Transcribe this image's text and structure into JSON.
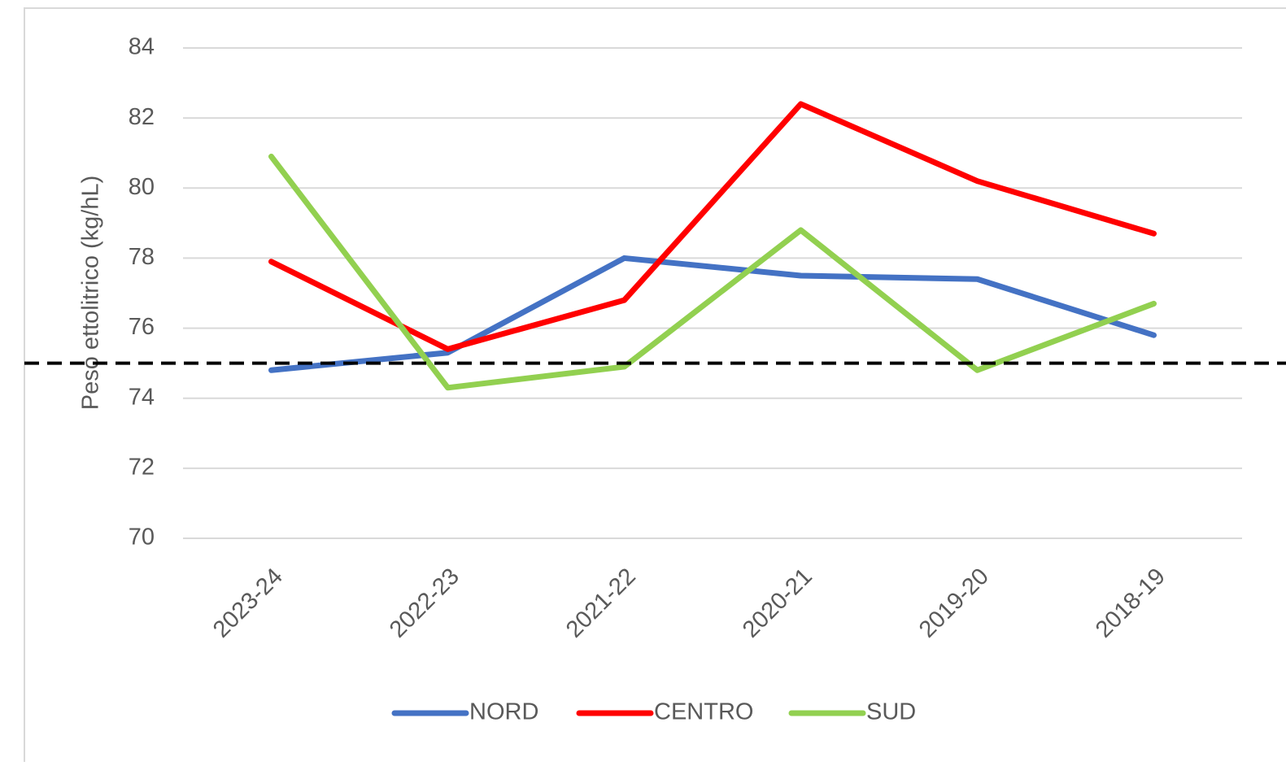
{
  "chart_data": {
    "type": "line",
    "y_label": "Peso ettolitrico (kg/hL)",
    "categories": [
      "2023-24",
      "2022-23",
      "2021-22",
      "2020-21",
      "2019-20",
      "2018-19"
    ],
    "series": [
      {
        "name": "NORD",
        "color": "#4472c4",
        "values": [
          74.8,
          75.3,
          78.0,
          77.5,
          77.4,
          75.8
        ]
      },
      {
        "name": "CENTRO",
        "color": "#ff0000",
        "values": [
          77.9,
          75.4,
          76.8,
          82.4,
          80.2,
          78.7
        ]
      },
      {
        "name": "SUD",
        "color": "#92d050",
        "values": [
          80.9,
          74.3,
          74.9,
          78.8,
          74.8,
          76.7
        ]
      }
    ],
    "reference_line": 75,
    "ylim": [
      70,
      84
    ],
    "yticks": [
      70,
      72,
      74,
      76,
      78,
      80,
      82,
      84
    ],
    "grid": true,
    "legend": "bottom"
  }
}
